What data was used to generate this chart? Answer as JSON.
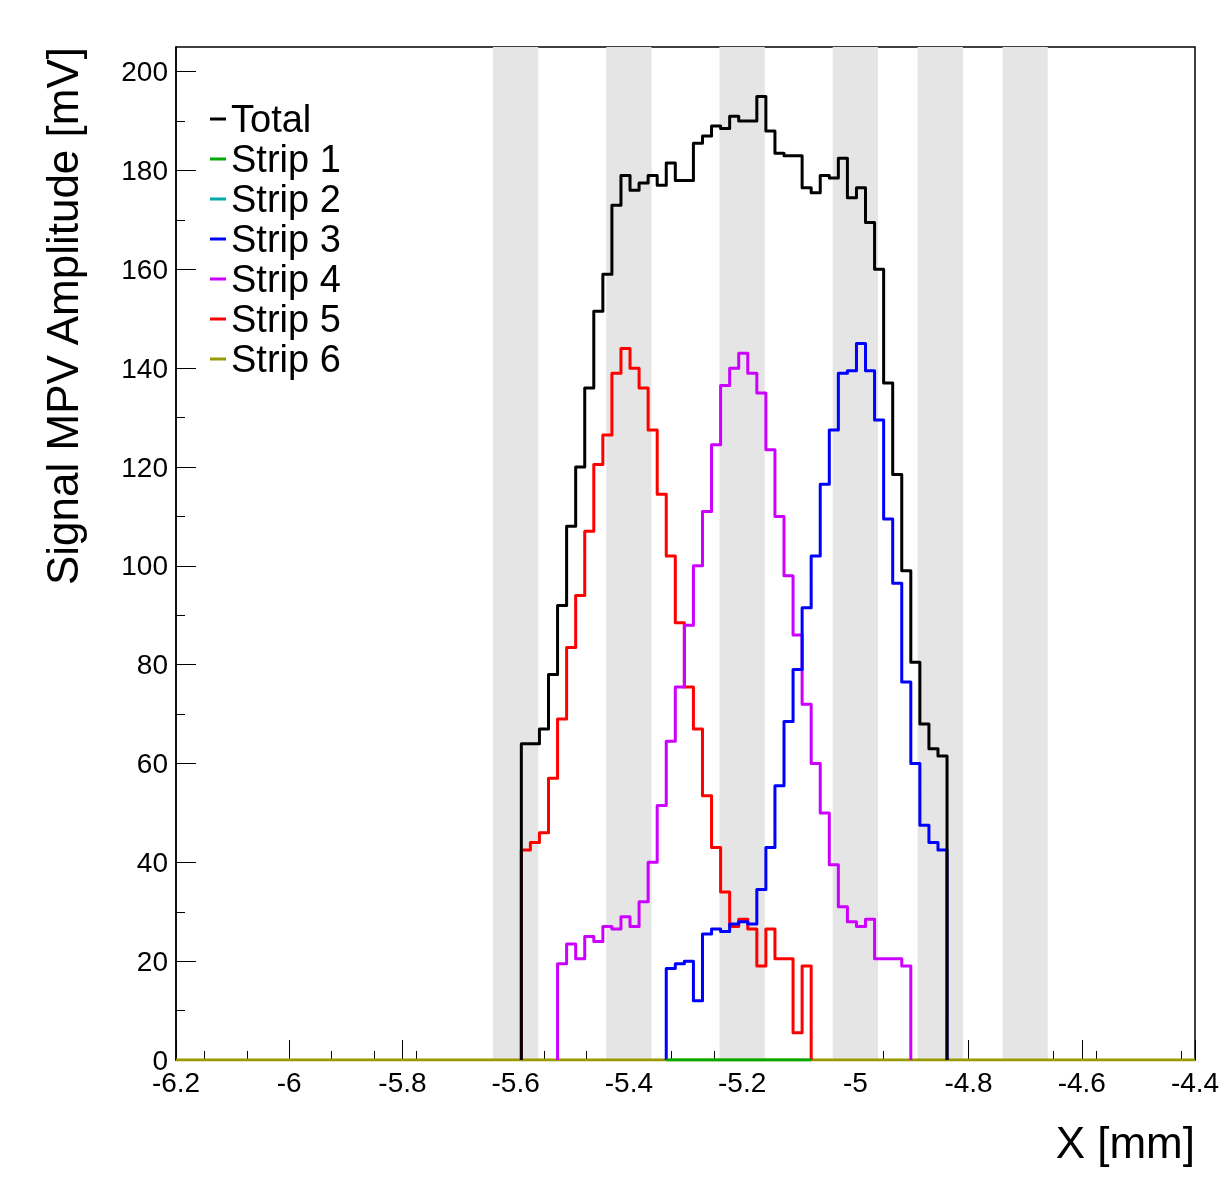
{
  "chart_data": {
    "type": "step",
    "xlabel": "X [mm]",
    "ylabel": "Signal MPV Amplitude [mV]",
    "series": [
      {
        "name": "Total",
        "color": "#000000",
        "x": [
          -5.59,
          -5.59,
          -5.574,
          -5.558,
          -5.542,
          -5.526,
          -5.51,
          -5.494,
          -5.478,
          -5.462,
          -5.446,
          -5.43,
          -5.414,
          -5.398,
          -5.382,
          -5.366,
          -5.35,
          -5.334,
          -5.318,
          -5.302,
          -5.286,
          -5.27,
          -5.254,
          -5.238,
          -5.222,
          -5.206,
          -5.19,
          -5.174,
          -5.158,
          -5.142,
          -5.126,
          -5.11,
          -5.094,
          -5.078,
          -5.062,
          -5.046,
          -5.03,
          -5.014,
          -4.998,
          -4.982,
          -4.966,
          -4.95,
          -4.934,
          -4.918,
          -4.902,
          -4.886,
          -4.87,
          -4.854,
          -4.838
        ],
        "values": [
          0,
          64,
          64,
          67,
          78,
          92,
          108,
          120,
          136,
          151.5,
          159,
          173,
          179,
          176,
          177.5,
          179,
          177,
          181.5,
          178,
          178,
          185.5,
          187,
          189,
          188.5,
          191,
          190,
          190,
          195,
          188,
          183.5,
          183,
          183,
          176.5,
          175.5,
          179,
          178.5,
          182.5,
          174.5,
          176.5,
          169.5,
          160,
          137,
          118.5,
          99,
          80.5,
          68,
          63,
          61.5,
          0
        ]
      },
      {
        "name": "Strip 1",
        "color": "#00aa00",
        "x": [
          -5.334,
          -5.078
        ],
        "values": [
          0,
          0
        ]
      },
      {
        "name": "Strip 2",
        "color": "#00aaaa"
      },
      {
        "name": "Strip 3",
        "color": "#0000ff",
        "x": [
          -5.334,
          -5.334,
          -5.318,
          -5.302,
          -5.286,
          -5.27,
          -5.254,
          -5.238,
          -5.222,
          -5.206,
          -5.19,
          -5.174,
          -5.158,
          -5.142,
          -5.126,
          -5.11,
          -5.094,
          -5.078,
          -5.062,
          -5.046,
          -5.03,
          -5.014,
          -4.998,
          -4.982,
          -4.966,
          -4.95,
          -4.934,
          -4.918,
          -4.902,
          -4.886,
          -4.87,
          -4.854,
          -4.838
        ],
        "values": [
          0,
          18.5,
          19.5,
          20,
          12,
          25.5,
          26.5,
          26,
          27.5,
          28,
          27.5,
          34.5,
          43,
          55.5,
          68.5,
          79,
          91.5,
          102,
          116.5,
          127.5,
          139,
          139.5,
          145,
          139.5,
          129.5,
          109.5,
          96.5,
          76.5,
          60,
          47.5,
          44,
          42.5,
          0
        ]
      },
      {
        "name": "Strip 4",
        "color": "#cc00ff",
        "x": [
          -5.526,
          -5.526,
          -5.51,
          -5.494,
          -5.478,
          -5.462,
          -5.446,
          -5.43,
          -5.414,
          -5.398,
          -5.382,
          -5.366,
          -5.35,
          -5.334,
          -5.318,
          -5.302,
          -5.286,
          -5.27,
          -5.254,
          -5.238,
          -5.222,
          -5.206,
          -5.19,
          -5.174,
          -5.158,
          -5.142,
          -5.126,
          -5.11,
          -5.094,
          -5.078,
          -5.062,
          -5.046,
          -5.03,
          -5.014,
          -4.998,
          -4.982,
          -4.966,
          -4.95,
          -4.934,
          -4.918,
          -4.902
        ],
        "values": [
          0,
          19.5,
          23.5,
          20.5,
          25,
          24,
          27,
          26.5,
          29,
          27,
          32,
          40,
          51.5,
          64.5,
          75.5,
          88,
          100,
          111,
          124.5,
          136.5,
          140,
          143,
          139,
          135,
          123.5,
          110,
          98,
          86,
          72,
          60,
          50,
          39.5,
          31,
          28,
          27,
          28.5,
          20.5,
          20.5,
          20.5,
          19,
          0
        ]
      },
      {
        "name": "Strip 5",
        "color": "#ff0000",
        "x": [
          -5.59,
          -5.59,
          -5.574,
          -5.558,
          -5.542,
          -5.526,
          -5.51,
          -5.494,
          -5.478,
          -5.462,
          -5.446,
          -5.43,
          -5.414,
          -5.398,
          -5.382,
          -5.366,
          -5.35,
          -5.334,
          -5.318,
          -5.302,
          -5.286,
          -5.27,
          -5.254,
          -5.238,
          -5.222,
          -5.206,
          -5.19,
          -5.174,
          -5.158,
          -5.142,
          -5.126,
          -5.11,
          -5.094,
          -5.078
        ],
        "values": [
          0,
          42.5,
          44,
          46,
          57,
          69,
          83.5,
          94,
          107,
          120.5,
          126.5,
          139,
          144,
          140,
          136,
          127.5,
          114.5,
          102,
          88.5,
          75.5,
          67,
          53.5,
          43,
          34,
          27,
          28.5,
          26.5,
          19,
          26.5,
          20.5,
          20.5,
          5.5,
          19,
          0
        ]
      },
      {
        "name": "Strip 6",
        "color": "#999900",
        "x": [
          -6.2,
          -4.4
        ],
        "values": [
          0,
          0
        ]
      }
    ],
    "bands": [
      {
        "axis": "x",
        "from": -5.64,
        "to": -5.56,
        "color": "#e5e5e5"
      },
      {
        "axis": "x",
        "from": -5.44,
        "to": -5.36,
        "color": "#e5e5e5"
      },
      {
        "axis": "x",
        "from": -5.24,
        "to": -5.16,
        "color": "#e5e5e5"
      },
      {
        "axis": "x",
        "from": -5.04,
        "to": -4.96,
        "color": "#e5e5e5"
      },
      {
        "axis": "x",
        "from": -4.89,
        "to": -4.81,
        "color": "#e5e5e5"
      },
      {
        "axis": "x",
        "from": -4.74,
        "to": -4.66,
        "color": "#e5e5e5"
      }
    ],
    "xlim": [
      -6.2,
      -4.4
    ],
    "xticks": [
      -6.2,
      -6,
      -5.8,
      -5.6,
      -5.4,
      -5.2,
      -5,
      -4.8,
      -4.6,
      -4.4
    ],
    "ylim": [
      0,
      205
    ],
    "yticks": [
      0,
      20,
      40,
      60,
      80,
      100,
      120,
      140,
      160,
      180,
      200
    ],
    "grid": false,
    "legend": "top left",
    "marker": "none",
    "line_style": "solid"
  }
}
